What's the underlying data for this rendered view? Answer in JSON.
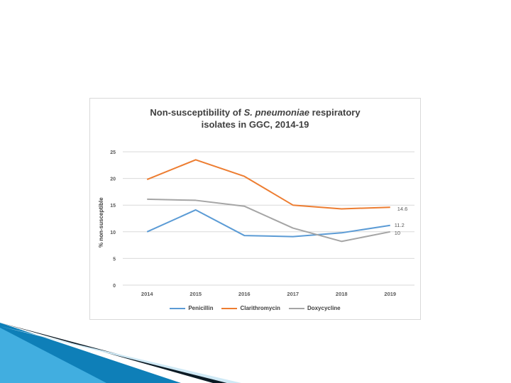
{
  "chart_data": {
    "type": "line",
    "title_part1": "Non-susceptibility of ",
    "title_species": "S. pneumoniae",
    "title_part2": " respiratory",
    "title_line2": "isolates in GGC, 2014-19",
    "ylabel": "% non-susceptible",
    "xlabel": "",
    "categories": [
      "2014",
      "2015",
      "2016",
      "2017",
      "2018",
      "2019"
    ],
    "ylim": [
      0,
      25
    ],
    "yticks": [
      0,
      5,
      10,
      15,
      20,
      25
    ],
    "grid": true,
    "legend_position": "bottom",
    "series": [
      {
        "name": "Penicillin",
        "color": "#5b9bd5",
        "values": [
          10,
          14.1,
          9.3,
          9.1,
          9.8,
          11.2
        ],
        "end_label": "11.2"
      },
      {
        "name": "Clarithromycin",
        "color": "#ed7d31",
        "values": [
          19.8,
          23.5,
          20.4,
          15,
          14.3,
          14.6
        ],
        "end_label": "14.6"
      },
      {
        "name": "Doxycycline",
        "color": "#a5a5a5",
        "values": [
          16.1,
          15.9,
          14.8,
          10.7,
          8.2,
          10
        ],
        "end_label": "10"
      }
    ]
  },
  "colors": {
    "deco_dark": "#0b1a24",
    "deco_blue": "#1f8fc9",
    "deco_light": "#8fd3ee"
  }
}
